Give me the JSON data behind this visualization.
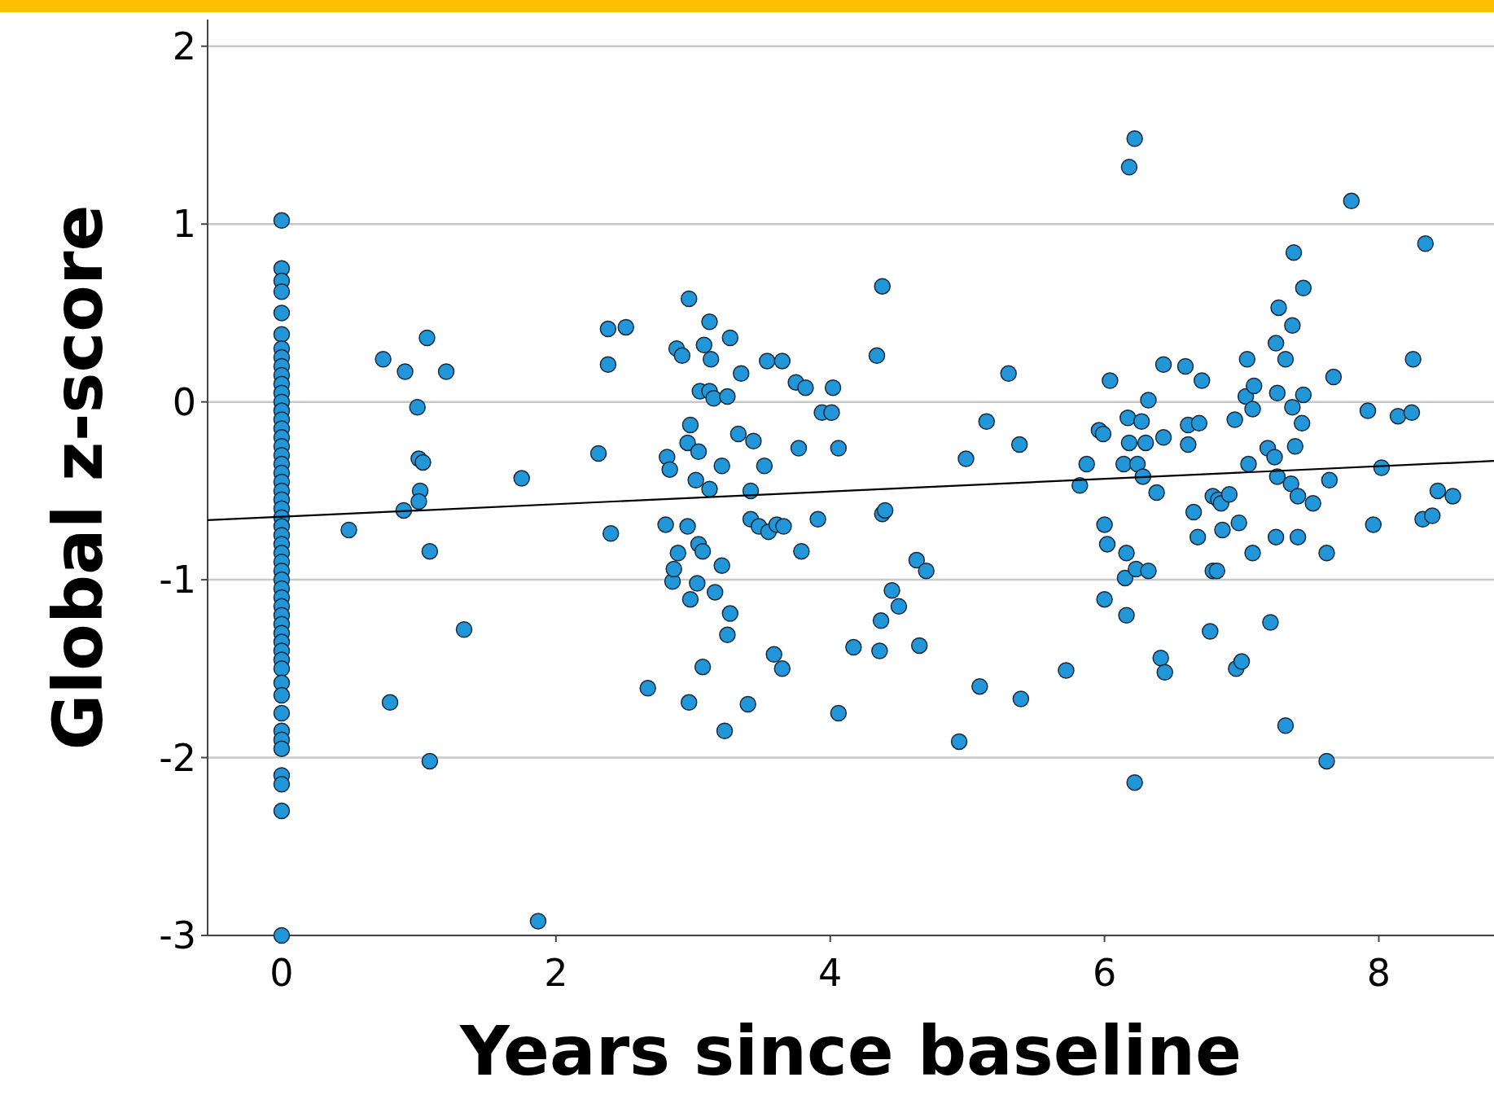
{
  "chart_data": {
    "type": "scatter",
    "xlabel": "Years since baseline",
    "ylabel": "Global z-score",
    "xlim": [
      -0.54,
      8.84
    ],
    "ylim": [
      -3,
      2.15
    ],
    "xticks": [
      0,
      2,
      4,
      6,
      8
    ],
    "yticks": [
      -3,
      -2,
      -1,
      0,
      1,
      2
    ],
    "grid": "y",
    "series": [
      {
        "marker": "circle",
        "color": "#2196d9",
        "x": [
          0,
          0,
          0,
          0,
          0,
          0,
          0,
          0,
          0,
          0,
          0,
          0,
          0,
          0,
          0,
          0,
          0,
          0,
          0,
          0,
          0,
          0,
          0,
          0,
          0,
          0,
          0,
          0,
          0,
          0,
          0,
          0,
          0,
          0,
          0,
          0,
          0,
          0,
          0,
          0,
          0,
          0,
          0,
          0,
          0,
          0,
          0,
          0,
          0,
          0,
          0,
          0,
          0,
          0.49,
          0.74,
          0.79,
          0.89,
          0.9,
          0.99,
          1.0,
          1.03,
          1.01,
          1.0,
          1.06,
          1.08,
          1.08,
          1.2,
          1.33,
          1.75,
          1.87,
          2.31,
          2.38,
          2.38,
          2.4,
          2.51,
          2.67,
          2.8,
          2.81,
          2.83,
          2.85,
          2.86,
          2.88,
          2.89,
          2.92,
          2.97,
          2.96,
          2.97,
          2.96,
          2.98,
          2.98,
          3.02,
          3.04,
          3.04,
          3.05,
          3.03,
          3.07,
          3.07,
          3.08,
          3.12,
          3.12,
          3.12,
          3.13,
          3.15,
          3.16,
          3.21,
          3.21,
          3.23,
          3.25,
          3.25,
          3.27,
          3.27,
          3.33,
          3.35,
          3.4,
          3.42,
          3.42,
          3.44,
          3.48,
          3.52,
          3.54,
          3.55,
          3.59,
          3.61,
          3.65,
          3.65,
          3.66,
          3.75,
          3.77,
          3.79,
          3.82,
          3.91,
          3.94,
          4.01,
          4.02,
          4.06,
          4.06,
          4.17,
          4.34,
          4.36,
          4.38,
          4.37,
          4.38,
          4.4,
          4.45,
          4.5,
          4.63,
          4.65,
          4.7,
          4.94,
          4.99,
          5.09,
          5.14,
          5.3,
          5.38,
          5.39,
          5.72,
          5.82,
          5.87,
          5.96,
          5.99,
          6.0,
          6.0,
          6.02,
          6.04,
          6.14,
          6.15,
          6.16,
          6.16,
          6.17,
          6.18,
          6.18,
          6.22,
          6.22,
          6.23,
          6.24,
          6.27,
          6.28,
          6.3,
          6.32,
          6.32,
          6.38,
          6.41,
          6.43,
          6.43,
          6.44,
          6.59,
          6.61,
          6.61,
          6.65,
          6.68,
          6.69,
          6.71,
          6.77,
          6.79,
          6.79,
          6.82,
          6.83,
          6.85,
          6.86,
          6.91,
          6.95,
          6.96,
          6.98,
          7.0,
          7.03,
          7.04,
          7.05,
          7.08,
          7.08,
          7.09,
          7.19,
          7.21,
          7.24,
          7.25,
          7.25,
          7.26,
          7.26,
          7.27,
          7.32,
          7.32,
          7.36,
          7.37,
          7.37,
          7.38,
          7.39,
          7.41,
          7.41,
          7.44,
          7.45,
          7.45,
          7.52,
          7.62,
          7.62,
          7.64,
          7.67,
          7.8,
          7.92,
          7.96,
          8.02,
          8.14,
          8.24,
          8.25,
          8.32,
          8.34,
          8.39,
          8.43,
          8.54
        ],
        "values": [
          1.02,
          0.75,
          0.68,
          0.62,
          0.5,
          0.38,
          0.3,
          0.25,
          0.2,
          0.15,
          0.1,
          0.05,
          0,
          -0.05,
          -0.1,
          -0.15,
          -0.2,
          -0.25,
          -0.3,
          -0.35,
          -0.4,
          -0.45,
          -0.5,
          -0.55,
          -0.6,
          -0.65,
          -0.7,
          -0.75,
          -0.8,
          -0.85,
          -0.9,
          -0.95,
          -1.0,
          -1.05,
          -1.1,
          -1.15,
          -1.2,
          -1.25,
          -1.3,
          -1.35,
          -1.4,
          -1.45,
          -1.5,
          -1.58,
          -1.65,
          -1.75,
          -1.85,
          -1.9,
          -1.95,
          -2.1,
          -2.15,
          -2.3,
          -3.0,
          -0.72,
          0.24,
          -1.69,
          -0.61,
          0.17,
          -0.03,
          -0.32,
          -0.34,
          -0.5,
          -0.56,
          0.36,
          -0.84,
          -2.02,
          0.17,
          -1.28,
          -0.43,
          -2.92,
          -0.29,
          0.41,
          0.21,
          -0.74,
          0.42,
          -1.61,
          -0.69,
          -0.31,
          -0.38,
          -1.01,
          -0.94,
          0.3,
          -0.85,
          0.26,
          0.58,
          -0.7,
          -1.69,
          -0.23,
          -0.13,
          -1.11,
          -0.44,
          -0.28,
          -0.8,
          0.06,
          -1.02,
          -0.84,
          -1.49,
          0.32,
          0.45,
          -0.49,
          0.06,
          0.24,
          0.02,
          -1.07,
          -0.36,
          -0.92,
          -1.85,
          0.03,
          -1.31,
          0.36,
          -1.19,
          -0.18,
          0.16,
          -1.7,
          -0.5,
          -0.66,
          -0.22,
          -0.7,
          -0.36,
          0.23,
          -0.73,
          -1.42,
          -0.69,
          0.23,
          -1.5,
          -0.7,
          0.11,
          -0.26,
          -0.84,
          0.08,
          -0.66,
          -0.06,
          -0.06,
          0.08,
          -0.26,
          -1.75,
          -1.38,
          0.26,
          -1.4,
          0.65,
          -1.23,
          -0.63,
          -0.61,
          -1.06,
          -1.15,
          -0.89,
          -1.37,
          -0.95,
          -1.91,
          -0.32,
          -1.6,
          -0.11,
          0.16,
          -0.24,
          -1.67,
          -1.51,
          -0.47,
          -0.35,
          -0.16,
          -0.18,
          -1.11,
          -0.69,
          -0.8,
          0.12,
          -0.35,
          -0.99,
          -0.85,
          -1.2,
          -0.09,
          1.32,
          -0.23,
          1.48,
          -2.14,
          -0.94,
          -0.35,
          -0.11,
          -0.42,
          -0.23,
          0.01,
          -0.95,
          -0.51,
          -1.44,
          -0.2,
          0.21,
          -1.52,
          0.2,
          -0.24,
          -0.13,
          -0.62,
          -0.76,
          -0.12,
          0.12,
          -1.29,
          -0.53,
          -0.95,
          -0.95,
          -0.55,
          -0.57,
          -0.72,
          -0.52,
          -0.1,
          -1.5,
          -0.68,
          -1.46,
          0.03,
          0.24,
          -0.35,
          -0.04,
          -0.85,
          0.09,
          -0.26,
          -1.24,
          -0.31,
          0.33,
          -0.76,
          0.05,
          -0.42,
          0.53,
          0.24,
          -1.82,
          -0.46,
          0.43,
          -0.03,
          0.84,
          -0.25,
          -0.53,
          -0.76,
          -0.12,
          0.64,
          0.04,
          -0.57,
          -0.85,
          -2.02,
          -0.44,
          0.14,
          1.13,
          -0.05,
          -0.69,
          -0.37,
          -0.08,
          -0.06,
          0.24,
          -0.66,
          0.89,
          -0.64,
          -0.5,
          -0.53
        ]
      },
      {
        "type": "line",
        "color": "#000000",
        "x": [
          -0.54,
          8.84
        ],
        "values": [
          -0.665,
          -0.332
        ]
      }
    ]
  }
}
